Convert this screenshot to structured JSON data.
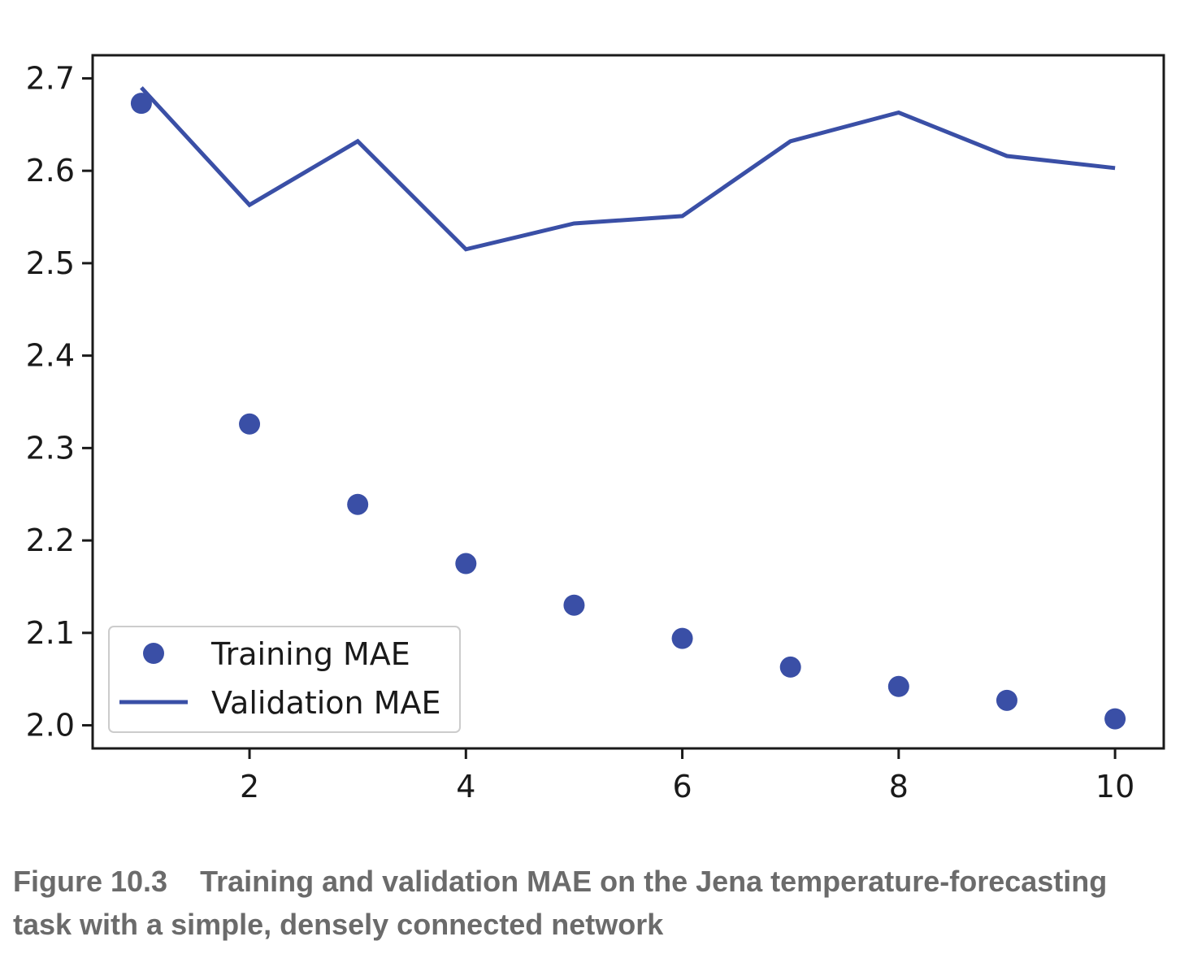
{
  "chart_data": {
    "type": "scatter+line",
    "x": [
      1,
      2,
      3,
      4,
      5,
      6,
      7,
      8,
      9,
      10
    ],
    "series": [
      {
        "name": "Training MAE",
        "style": "points",
        "values": [
          2.673,
          2.326,
          2.239,
          2.175,
          2.13,
          2.094,
          2.063,
          2.042,
          2.027,
          2.007
        ]
      },
      {
        "name": "Validation MAE",
        "style": "line",
        "values": [
          2.69,
          2.563,
          2.632,
          2.515,
          2.543,
          2.551,
          2.632,
          2.663,
          2.616,
          2.603
        ]
      }
    ],
    "xlim": [
      0.55,
      10.45
    ],
    "ylim": [
      1.975,
      2.725
    ],
    "xticks": [
      2,
      4,
      6,
      8,
      10
    ],
    "xtick_labels": [
      "2",
      "4",
      "6",
      "8",
      "10"
    ],
    "yticks": [
      2.0,
      2.1,
      2.2,
      2.3,
      2.4,
      2.5,
      2.6,
      2.7
    ],
    "ytick_labels": [
      "2.0",
      "2.1",
      "2.2",
      "2.3",
      "2.4",
      "2.5",
      "2.6",
      "2.7"
    ],
    "grid": false,
    "legend_position": "lower-left",
    "series_color": "#3a4fa6"
  },
  "caption": {
    "figure_number": "Figure 10.3",
    "text": "Training and validation MAE on the Jena temperature-forecasting task with a simple, densely connected network"
  }
}
